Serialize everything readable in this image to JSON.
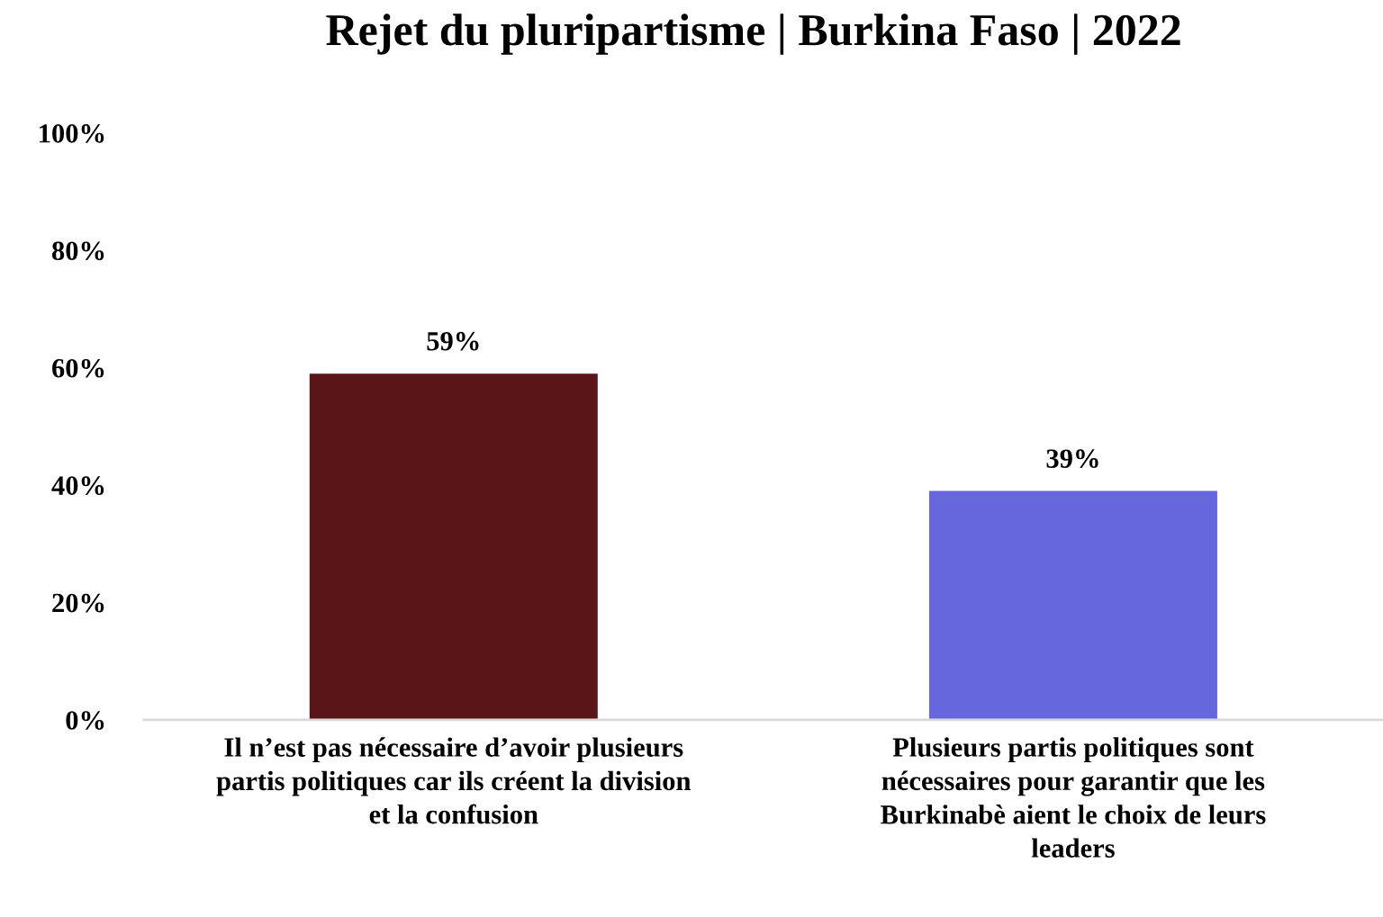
{
  "chart_data": {
    "type": "bar",
    "title": "Rejet du pluripartisme | Burkina Faso | 2022",
    "categories": [
      "Il n’est pas nécessaire d’avoir plusieurs\npartis politiques car ils créent la division\net la confusion",
      "Plusieurs partis politiques sont\nnécessaires pour garantir que les\nBurkinabè aient le choix de leurs\nleaders"
    ],
    "values": [
      59,
      39
    ],
    "colors": [
      "#5a1518",
      "#6666dd"
    ],
    "value_labels": [
      "59%",
      "39%"
    ],
    "ylim": [
      0,
      100
    ],
    "yticks": [
      {
        "value": 0,
        "label": "0%"
      },
      {
        "value": 20,
        "label": "20%"
      },
      {
        "value": 40,
        "label": "40%"
      },
      {
        "value": 60,
        "label": "60%"
      },
      {
        "value": 80,
        "label": "80%"
      },
      {
        "value": 100,
        "label": "100%"
      }
    ],
    "grid": false,
    "legend": false
  }
}
